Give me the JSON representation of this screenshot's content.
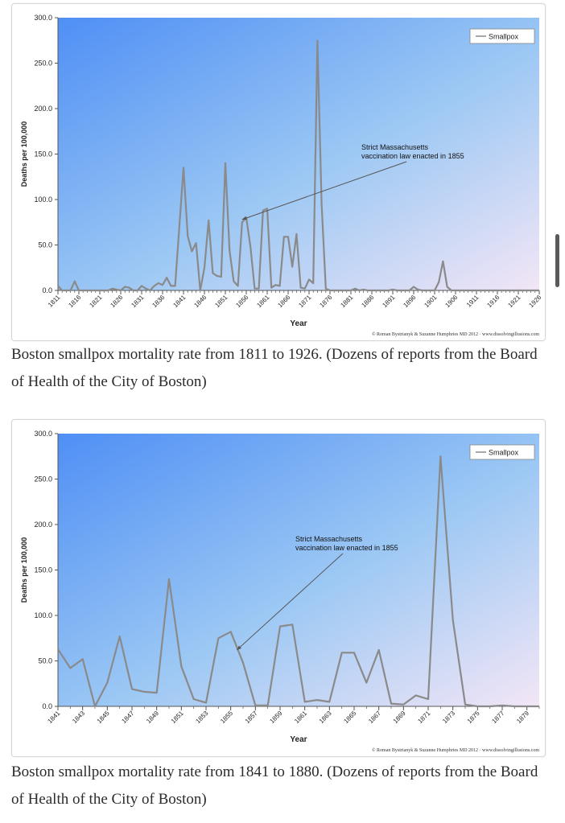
{
  "figures": [
    {
      "caption": "Boston smallpox mortality rate from 1811 to 1926. (Dozens of reports from the Board of Health of the City of Boston)",
      "chart_data": {
        "type": "line",
        "ylabel": "Deaths per 100,000",
        "xlabel": "Year",
        "ylim": [
          0,
          300
        ],
        "yticks": [
          "0.0",
          "50.0",
          "100.0",
          "150.0",
          "200.0",
          "250.0",
          "300.0"
        ],
        "x_tick_labels": [
          "1811",
          "1816",
          "1821",
          "1826",
          "1831",
          "1836",
          "1841",
          "1846",
          "1851",
          "1856",
          "1861",
          "1866",
          "1871",
          "1876",
          "1881",
          "1886",
          "1891",
          "1896",
          "1901",
          "1906",
          "1911",
          "1916",
          "1921",
          "1926"
        ],
        "legend": "Smallpox",
        "legend_position": "top-right",
        "annotation": [
          "Strict Massachusetts",
          "vaccination law enacted in 1855"
        ],
        "annotation_target": {
          "x": 1855,
          "y": 78
        },
        "credit": "© Roman Bystrianyk & Suzanne Humphries MD 2012 · www.dissolvingillusions.com",
        "series": [
          {
            "name": "Smallpox",
            "x": [
              1811,
              1812,
              1813,
              1814,
              1815,
              1816,
              1817,
              1818,
              1819,
              1820,
              1821,
              1822,
              1823,
              1824,
              1825,
              1826,
              1827,
              1828,
              1829,
              1830,
              1831,
              1832,
              1833,
              1834,
              1835,
              1836,
              1837,
              1838,
              1839,
              1840,
              1841,
              1842,
              1843,
              1844,
              1845,
              1846,
              1847,
              1848,
              1849,
              1850,
              1851,
              1852,
              1853,
              1854,
              1855,
              1856,
              1857,
              1858,
              1859,
              1860,
              1861,
              1862,
              1863,
              1864,
              1865,
              1866,
              1867,
              1868,
              1869,
              1870,
              1871,
              1872,
              1873,
              1874,
              1875,
              1876,
              1877,
              1878,
              1879,
              1880,
              1881,
              1882,
              1883,
              1884,
              1885,
              1886,
              1887,
              1888,
              1889,
              1890,
              1891,
              1892,
              1893,
              1894,
              1895,
              1896,
              1897,
              1898,
              1899,
              1900,
              1901,
              1902,
              1903,
              1904,
              1905,
              1906,
              1907,
              1908,
              1909,
              1910,
              1911,
              1912,
              1913,
              1914,
              1915,
              1916,
              1917,
              1918,
              1919,
              1920,
              1921,
              1922,
              1923,
              1924,
              1925,
              1926
            ],
            "values": [
              5,
              0,
              0,
              0,
              10,
              0,
              0,
              0,
              0,
              0,
              0,
              0,
              0,
              2,
              1,
              0,
              4,
              3,
              0,
              0,
              5,
              2,
              0,
              5,
              8,
              6,
              14,
              5,
              5,
              70,
              135,
              60,
              43,
              52,
              0,
              25,
              77,
              19,
              16,
              15,
              140,
              44,
              10,
              5,
              75,
              80,
              48,
              2,
              2,
              88,
              90,
              3,
              6,
              5,
              59,
              59,
              26,
              62,
              3,
              2,
              12,
              8,
              275,
              95,
              2,
              0,
              0,
              0,
              0,
              0,
              0,
              2,
              0,
              1,
              0,
              0,
              0,
              0,
              0,
              0,
              1,
              0,
              0,
              0,
              0,
              4,
              1,
              0,
              0,
              0,
              0,
              9,
              32,
              4,
              0,
              0,
              0,
              0,
              0,
              0,
              0,
              0,
              0,
              0,
              0,
              0,
              0,
              0,
              0,
              0,
              0,
              0,
              0,
              0,
              0,
              0
            ]
          }
        ]
      }
    },
    {
      "caption": "Boston smallpox mortality rate from 1841 to 1880. (Dozens of reports from the Board of Health of the City of Boston)",
      "chart_data": {
        "type": "line",
        "ylabel": "Deaths per 100,000",
        "xlabel": "Year",
        "ylim": [
          0,
          300
        ],
        "yticks": [
          "0.0",
          "50.0",
          "100.0",
          "150.0",
          "200.0",
          "250.0",
          "300.0"
        ],
        "x_tick_labels": [
          "1841",
          "1843",
          "1845",
          "1847",
          "1849",
          "1851",
          "1853",
          "1855",
          "1857",
          "1859",
          "1861",
          "1863",
          "1865",
          "1867",
          "1869",
          "1871",
          "1873",
          "1875",
          "1877",
          "1879"
        ],
        "legend": "Smallpox",
        "legend_position": "top-right",
        "annotation": [
          "Strict Massachusetts",
          "vaccination law enacted in 1855"
        ],
        "annotation_target": {
          "x": 1855.5,
          "y": 62
        },
        "credit": "© Roman Bystrianyk & Suzanne Humphries MD 2012 · www.dissolvingillusions.com",
        "series": [
          {
            "name": "Smallpox",
            "x": [
              1841,
              1842,
              1843,
              1844,
              1845,
              1846,
              1847,
              1848,
              1849,
              1850,
              1851,
              1852,
              1853,
              1854,
              1855,
              1856,
              1857,
              1858,
              1859,
              1860,
              1861,
              1862,
              1863,
              1864,
              1865,
              1866,
              1867,
              1868,
              1869,
              1870,
              1871,
              1872,
              1873,
              1874,
              1875,
              1876,
              1877,
              1878,
              1879,
              1880
            ],
            "values": [
              63,
              42,
              52,
              0,
              26,
              77,
              19,
              16,
              15,
              140,
              44,
              8,
              4,
              75,
              82,
              48,
              1,
              1,
              88,
              90,
              5,
              7,
              5,
              59,
              59,
              26,
              62,
              3,
              2,
              12,
              8,
              275,
              95,
              2,
              0,
              0,
              1,
              0,
              0,
              0
            ]
          }
        ]
      }
    }
  ]
}
